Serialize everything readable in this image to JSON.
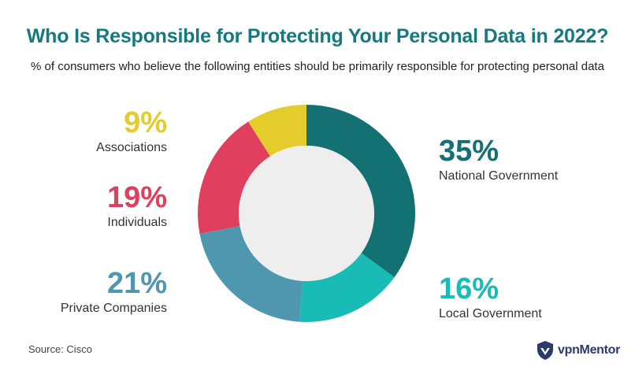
{
  "title": "Who Is Responsible for Protecting Your Personal Data in 2022?",
  "subtitle": "% of consumers who believe the following entities should be primarily responsible for protecting personal data",
  "source": "Source: Cisco",
  "brand": {
    "name": "vpnMentor",
    "icon": "shield-logo-icon"
  },
  "chart_data": {
    "type": "pie",
    "donut": true,
    "title": "Who Is Responsible for Protecting Your Personal Data in 2022?",
    "subtitle": "% of consumers who believe the following entities should be primarily responsible for protecting personal data",
    "unit": "%",
    "categories": [
      "National Government",
      "Local Government",
      "Private Companies",
      "Individuals",
      "Associations"
    ],
    "values": [
      35,
      16,
      21,
      19,
      9
    ],
    "labels": [
      "35%",
      "16%",
      "21%",
      "19%",
      "9%"
    ],
    "colors": [
      "#137073",
      "#18bcb4",
      "#4f97ae",
      "#e0405e",
      "#e3cc2c"
    ],
    "legend": "labels beside slices"
  }
}
